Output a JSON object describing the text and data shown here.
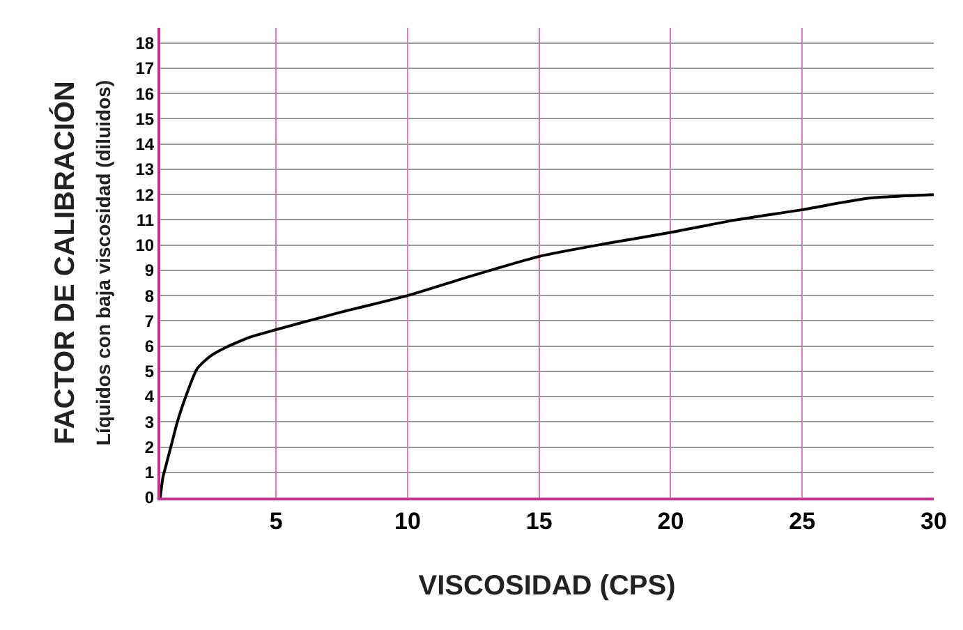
{
  "chart_data": {
    "type": "line",
    "xlabel": "VISCOSIDAD (CPS)",
    "ylabel": "FACTOR DE CALIBRACIÓN\nLíquidos con baja viscosidad (diluidos)",
    "x": [
      0.6,
      0.7,
      0.8,
      1.0,
      1.25,
      1.5,
      2,
      2.5,
      3,
      4,
      5,
      7.5,
      10,
      12.5,
      15,
      17.5,
      20,
      22.5,
      25,
      27.5,
      30
    ],
    "series": [
      {
        "color": "#000000",
        "values": [
          0,
          0.8,
          1.2,
          2.0,
          3.0,
          3.8,
          5.1,
          5.6,
          5.9,
          6.35,
          6.65,
          7.35,
          8.0,
          8.8,
          9.55,
          10.05,
          10.5,
          11.0,
          11.4,
          11.85,
          12.0
        ]
      }
    ],
    "xlim": [
      0.6,
      30
    ],
    "xticks": [
      5,
      10,
      15,
      20,
      25,
      30
    ],
    "ylim": [
      0,
      18.6
    ],
    "yticks": [
      0,
      1,
      2,
      3,
      4,
      5,
      6,
      7,
      8,
      9,
      10,
      11,
      12,
      13,
      14,
      15,
      16,
      17,
      18
    ],
    "grid": true,
    "marker": "none",
    "line_style": "solid"
  }
}
